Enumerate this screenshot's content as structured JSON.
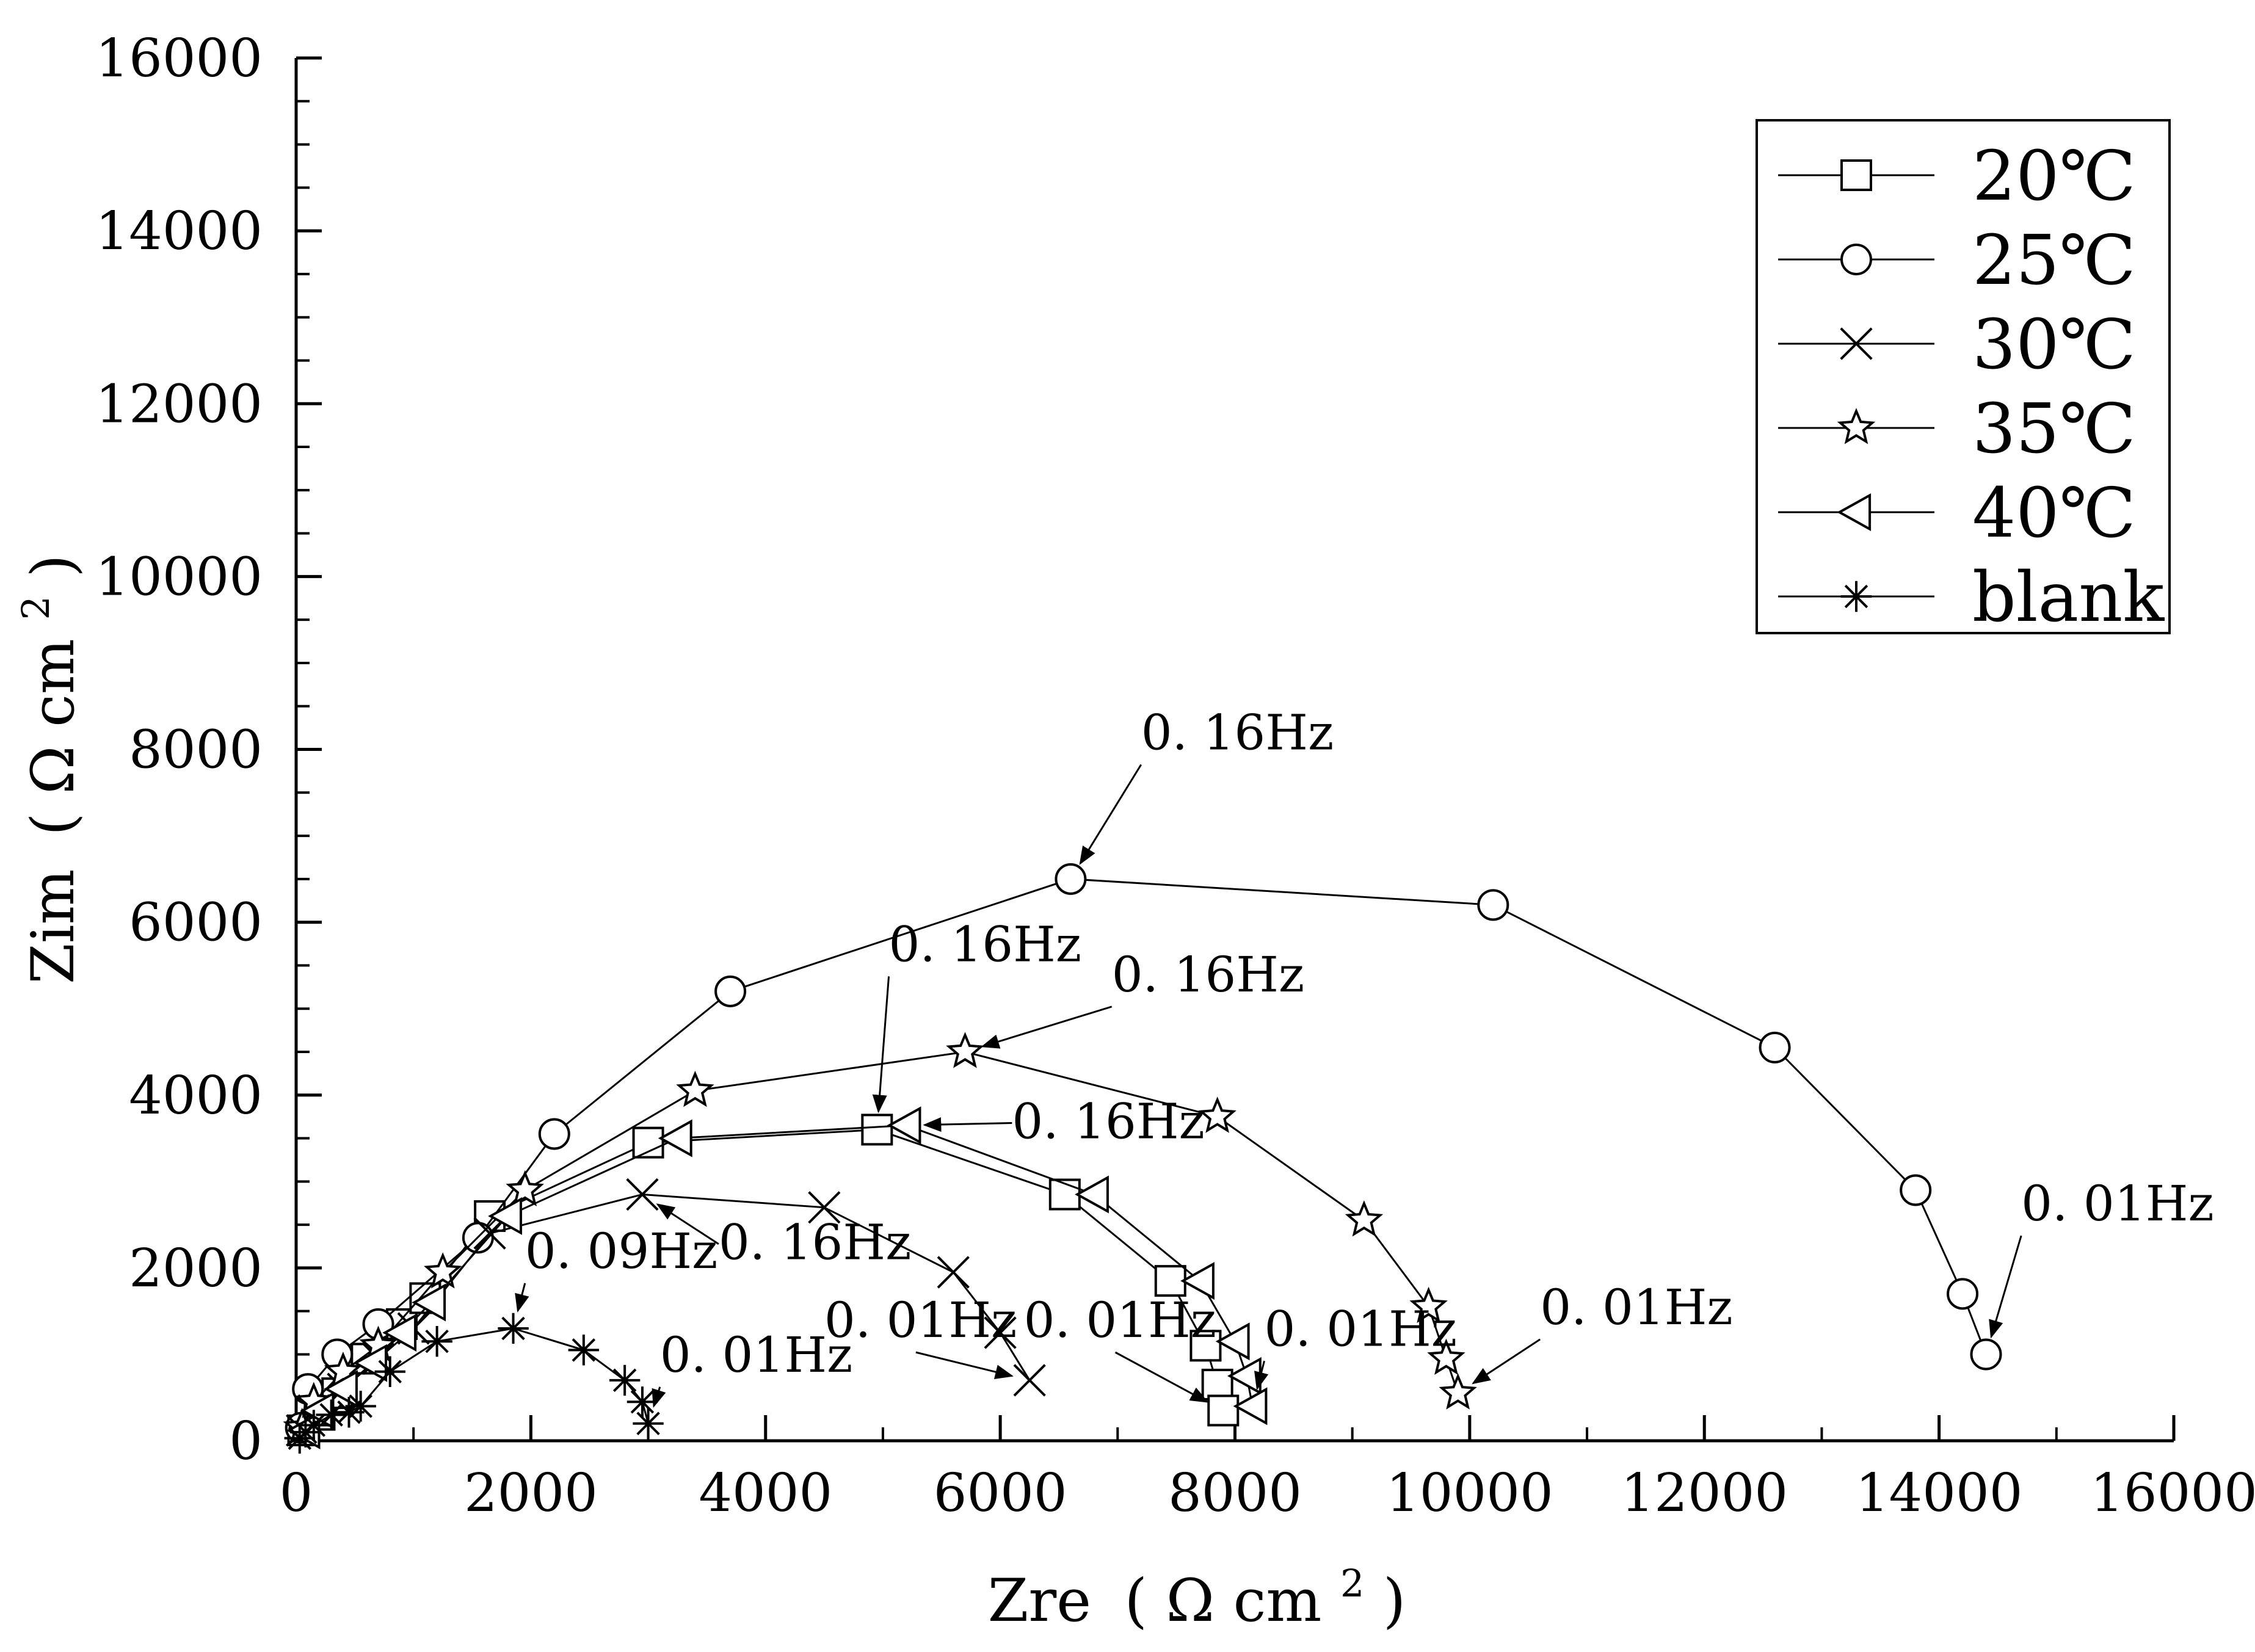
{
  "chart_data": {
    "type": "line",
    "title": "",
    "xlabel": "Zre",
    "xunit_base": "Ω  cm",
    "ylabel": "Zim",
    "yunit_base": "Ω  cm",
    "unit_power": "2",
    "xlim": [
      0,
      16000
    ],
    "ylim": [
      0,
      16000
    ],
    "xticks": [
      0,
      2000,
      4000,
      6000,
      8000,
      10000,
      12000,
      14000,
      16000
    ],
    "yticks": [
      0,
      2000,
      4000,
      6000,
      8000,
      10000,
      12000,
      14000,
      16000
    ],
    "xtick_labels": [
      "0",
      "2000",
      "4000",
      "6000",
      "8000",
      "10000",
      "12000",
      "14000",
      "16000"
    ],
    "ytick_labels": [
      "0",
      "2000",
      "4000",
      "6000",
      "8000",
      "10000",
      "12000",
      "14000",
      "16000"
    ],
    "legend_position": "top-right",
    "grid": false,
    "series": [
      {
        "name": "20℃",
        "marker": "square",
        "points": [
          [
            60,
            120
          ],
          [
            200,
            300
          ],
          [
            350,
            550
          ],
          [
            600,
            950
          ],
          [
            900,
            1350
          ],
          [
            1100,
            1650
          ],
          [
            1650,
            2600
          ],
          [
            3000,
            3450
          ],
          [
            4950,
            3600
          ],
          [
            6550,
            2850
          ],
          [
            7450,
            1850
          ],
          [
            7750,
            1100
          ],
          [
            7850,
            650
          ],
          [
            7900,
            350
          ]
        ]
      },
      {
        "name": "25℃",
        "marker": "circle",
        "points": [
          [
            40,
            150
          ],
          [
            100,
            600
          ],
          [
            350,
            1000
          ],
          [
            700,
            1350
          ],
          [
            1550,
            2350
          ],
          [
            2200,
            3550
          ],
          [
            3700,
            5200
          ],
          [
            6600,
            6500
          ],
          [
            10200,
            6200
          ],
          [
            12600,
            4550
          ],
          [
            13800,
            2900
          ],
          [
            14200,
            1700
          ],
          [
            14400,
            1000
          ]
        ]
      },
      {
        "name": "30℃",
        "marker": "x",
        "points": [
          [
            50,
            120
          ],
          [
            150,
            350
          ],
          [
            400,
            600
          ],
          [
            700,
            950
          ],
          [
            1000,
            1300
          ],
          [
            1650,
            2400
          ],
          [
            2950,
            2850
          ],
          [
            4500,
            2700
          ],
          [
            5600,
            1950
          ],
          [
            6000,
            1250
          ],
          [
            6250,
            700
          ]
        ]
      },
      {
        "name": "35℃",
        "marker": "star",
        "points": [
          [
            50,
            150
          ],
          [
            150,
            450
          ],
          [
            400,
            800
          ],
          [
            700,
            1100
          ],
          [
            1250,
            1950
          ],
          [
            1950,
            2900
          ],
          [
            3400,
            4050
          ],
          [
            5700,
            4500
          ],
          [
            7850,
            3750
          ],
          [
            9100,
            2550
          ],
          [
            9650,
            1550
          ],
          [
            9800,
            950
          ],
          [
            9900,
            550
          ]
        ]
      },
      {
        "name": "40℃",
        "marker": "triangle-left",
        "points": [
          [
            80,
            120
          ],
          [
            200,
            350
          ],
          [
            400,
            600
          ],
          [
            650,
            900
          ],
          [
            900,
            1250
          ],
          [
            1150,
            1600
          ],
          [
            1800,
            2600
          ],
          [
            3250,
            3500
          ],
          [
            5200,
            3650
          ],
          [
            6800,
            2850
          ],
          [
            7700,
            1850
          ],
          [
            8000,
            1150
          ],
          [
            8100,
            750
          ],
          [
            8150,
            400
          ]
        ]
      },
      {
        "name": "blank",
        "marker": "asterisk",
        "points": [
          [
            30,
            30
          ],
          [
            80,
            100
          ],
          [
            150,
            180
          ],
          [
            300,
            300
          ],
          [
            450,
            330
          ],
          [
            550,
            400
          ],
          [
            800,
            800
          ],
          [
            1200,
            1150
          ],
          [
            1850,
            1300
          ],
          [
            2450,
            1050
          ],
          [
            2800,
            700
          ],
          [
            2950,
            450
          ],
          [
            3000,
            200
          ]
        ]
      }
    ],
    "annotations": [
      {
        "text": "0. 16Hz",
        "tx": 7200,
        "ty": 8000,
        "ax": 6600,
        "ay": 6500,
        "anchor": "start"
      },
      {
        "text": "0. 16Hz",
        "tx": 5050,
        "ty": 5550,
        "ax": 4950,
        "ay": 3600,
        "anchor": "start"
      },
      {
        "text": "0. 16Hz",
        "tx": 6950,
        "ty": 5200,
        "ax": 5700,
        "ay": 4500,
        "anchor": "start"
      },
      {
        "text": "0. 16Hz",
        "tx": 6100,
        "ty": 3500,
        "ax": 5200,
        "ay": 3650,
        "anchor": "start"
      },
      {
        "text": "0. 16Hz",
        "tx": 3600,
        "ty": 2100,
        "ax": 2950,
        "ay": 2850,
        "anchor": "start"
      },
      {
        "text": "0. 09Hz",
        "tx": 1950,
        "ty": 2000,
        "ax": 1850,
        "ay": 1300,
        "anchor": "start"
      },
      {
        "text": "0. 01Hz",
        "tx": 3100,
        "ty": 800,
        "ax": 3000,
        "ay": 200,
        "anchor": "start"
      },
      {
        "text": "0. 01Hz",
        "tx": 4500,
        "ty": 1200,
        "ax": 6250,
        "ay": 700,
        "anchor": "start"
      },
      {
        "text": "0. 01Hz",
        "tx": 6200,
        "ty": 1200,
        "ax": 7900,
        "ay": 350,
        "anchor": "start"
      },
      {
        "text": "0. 01Hz",
        "tx": 8250,
        "ty": 1100,
        "ax": 8150,
        "ay": 400,
        "anchor": "start"
      },
      {
        "text": "0. 01Hz",
        "tx": 10600,
        "ty": 1350,
        "ax": 9900,
        "ay": 550,
        "anchor": "start"
      },
      {
        "text": "0. 01Hz",
        "tx": 14700,
        "ty": 2550,
        "ax": 14400,
        "ay": 1000,
        "anchor": "start"
      }
    ]
  }
}
